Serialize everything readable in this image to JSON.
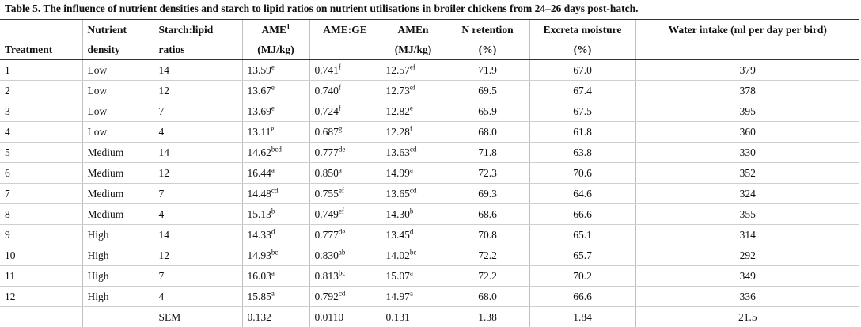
{
  "caption": "Table 5.  The influence of nutrient densities and starch to lipid ratios on nutrient utilisations in broiler chickens from 24–26 days post-hatch.",
  "headers": {
    "row1": [
      "",
      "Nutrient",
      "Starch:lipid",
      "AME",
      "AME:GE",
      "AMEn",
      "N retention",
      "Excreta moisture",
      "Water intake (ml per day per bird)"
    ],
    "ame_sup": "1",
    "row2": [
      "Treatment",
      "density",
      "ratios",
      "(MJ/kg)",
      "",
      "(MJ/kg)",
      "(%)",
      "(%)",
      ""
    ]
  },
  "rows": [
    {
      "t": "1",
      "nd": "Low",
      "sl": "14",
      "ame": "13.59",
      "ame_s": "e",
      "ge": "0.741",
      "ge_s": "f",
      "amen": "12.57",
      "amen_s": "ef",
      "nr": "71.9",
      "em": "67.0",
      "wi": "379"
    },
    {
      "t": "2",
      "nd": "Low",
      "sl": "12",
      "ame": "13.67",
      "ame_s": "e",
      "ge": "0.740",
      "ge_s": "f",
      "amen": "12.73",
      "amen_s": "ef",
      "nr": "69.5",
      "em": "67.4",
      "wi": "378"
    },
    {
      "t": "3",
      "nd": "Low",
      "sl": "7",
      "ame": "13.69",
      "ame_s": "e",
      "ge": "0.724",
      "ge_s": "f",
      "amen": "12.82",
      "amen_s": "e",
      "nr": "65.9",
      "em": "67.5",
      "wi": "395"
    },
    {
      "t": "4",
      "nd": "Low",
      "sl": "4",
      "ame": "13.11",
      "ame_s": "e",
      "ge": "0.687",
      "ge_s": "g",
      "amen": "12.28",
      "amen_s": "f",
      "nr": "68.0",
      "em": "61.8",
      "wi": "360"
    },
    {
      "t": "5",
      "nd": "Medium",
      "sl": "14",
      "ame": "14.62",
      "ame_s": "bcd",
      "ge": "0.777",
      "ge_s": "de",
      "amen": "13.63",
      "amen_s": "cd",
      "nr": "71.8",
      "em": "63.8",
      "wi": "330"
    },
    {
      "t": "6",
      "nd": "Medium",
      "sl": "12",
      "ame": "16.44",
      "ame_s": "a",
      "ge": "0.850",
      "ge_s": "a",
      "amen": "14.99",
      "amen_s": "a",
      "nr": "72.3",
      "em": "70.6",
      "wi": "352"
    },
    {
      "t": "7",
      "nd": "Medium",
      "sl": "7",
      "ame": "14.48",
      "ame_s": "cd",
      "ge": "0.755",
      "ge_s": "ef",
      "amen": "13.65",
      "amen_s": "cd",
      "nr": "69.3",
      "em": "64.6",
      "wi": "324"
    },
    {
      "t": "8",
      "nd": "Medium",
      "sl": "4",
      "ame": "15.13",
      "ame_s": "b",
      "ge": "0.749",
      "ge_s": "ef",
      "amen": "14.30",
      "amen_s": "b",
      "nr": "68.6",
      "em": "66.6",
      "wi": "355"
    },
    {
      "t": "9",
      "nd": "High",
      "sl": "14",
      "ame": "14.33",
      "ame_s": "d",
      "ge": "0.777",
      "ge_s": "de",
      "amen": "13.45",
      "amen_s": "d",
      "nr": "70.8",
      "em": "65.1",
      "wi": "314"
    },
    {
      "t": "10",
      "nd": "High",
      "sl": "12",
      "ame": "14.93",
      "ame_s": "bc",
      "ge": "0.830",
      "ge_s": "ab",
      "amen": "14.02",
      "amen_s": "bc",
      "nr": "72.2",
      "em": "65.7",
      "wi": "292"
    },
    {
      "t": "11",
      "nd": "High",
      "sl": "7",
      "ame": "16.03",
      "ame_s": "a",
      "ge": "0.813",
      "ge_s": "bc",
      "amen": "15.07",
      "amen_s": "a",
      "nr": "72.2",
      "em": "70.2",
      "wi": "349"
    },
    {
      "t": "12",
      "nd": "High",
      "sl": "4",
      "ame": "15.85",
      "ame_s": "a",
      "ge": "0.792",
      "ge_s": "cd",
      "amen": "14.97",
      "amen_s": "a",
      "nr": "68.0",
      "em": "66.6",
      "wi": "336"
    },
    {
      "t": "",
      "nd": "",
      "sl": "SEM",
      "ame": "0.132",
      "ame_s": "",
      "ge": "0.0110",
      "ge_s": "",
      "amen": "0.131",
      "amen_s": "",
      "nr": "1.38",
      "em": "1.84",
      "wi": "21.5"
    }
  ]
}
